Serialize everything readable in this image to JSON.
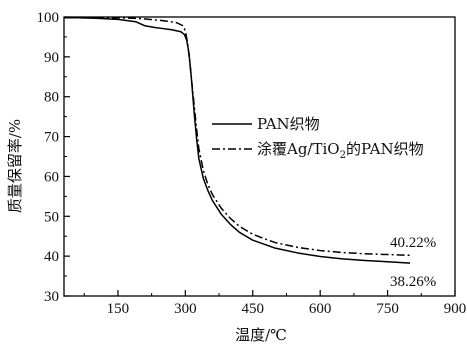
{
  "chart_data": {
    "type": "line",
    "xlabel": "温度/℃",
    "ylabel": "质量保留率/%",
    "xlim": [
      30,
      900
    ],
    "ylim": [
      30,
      100
    ],
    "xticks": [
      150,
      300,
      450,
      600,
      750,
      900
    ],
    "yticks": [
      30,
      40,
      50,
      60,
      70,
      80,
      90,
      100
    ],
    "grid": false,
    "legend_position": "center-right",
    "series": [
      {
        "name": "PAN织物",
        "style": "solid",
        "color": "#000000",
        "x": [
          30,
          60,
          100,
          150,
          190,
          210,
          230,
          250,
          270,
          290,
          298,
          303,
          308,
          312,
          316,
          320,
          325,
          330,
          340,
          350,
          360,
          380,
          400,
          420,
          450,
          480,
          500,
          550,
          600,
          650,
          700,
          750,
          800
        ],
        "y": [
          99.8,
          99.8,
          99.7,
          99.4,
          98.8,
          97.8,
          97.4,
          97.1,
          96.8,
          96.3,
          95.6,
          94.2,
          91.0,
          86.5,
          81.0,
          75.5,
          69.5,
          64.5,
          59.5,
          56.5,
          54.0,
          50.5,
          48.0,
          46.0,
          44.0,
          42.8,
          42.0,
          40.8,
          39.9,
          39.3,
          38.9,
          38.6,
          38.26
        ]
      },
      {
        "name": "涂覆Ag/TiO2的PAN织物",
        "name_plain": "涂覆Ag/TiO",
        "name_sub": "2",
        "name_suffix": "的PAN织物",
        "style": "dashdot",
        "color": "#000000",
        "x": [
          30,
          60,
          100,
          150,
          200,
          250,
          280,
          295,
          300,
          305,
          310,
          315,
          320,
          325,
          330,
          340,
          350,
          360,
          380,
          400,
          420,
          450,
          480,
          500,
          550,
          600,
          650,
          700,
          750,
          800
        ],
        "y": [
          99.9,
          99.9,
          99.9,
          99.8,
          99.6,
          99.1,
          98.6,
          97.8,
          96.5,
          93.5,
          88.5,
          83.0,
          77.5,
          72.0,
          67.0,
          61.5,
          58.0,
          55.5,
          52.0,
          49.5,
          47.5,
          45.5,
          44.2,
          43.4,
          42.2,
          41.4,
          40.9,
          40.6,
          40.4,
          40.22
        ]
      }
    ],
    "annotations": [
      {
        "text": "40.22%",
        "x": 800,
        "y": 40.22
      },
      {
        "text": "38.26%",
        "x": 800,
        "y": 38.26
      }
    ]
  }
}
